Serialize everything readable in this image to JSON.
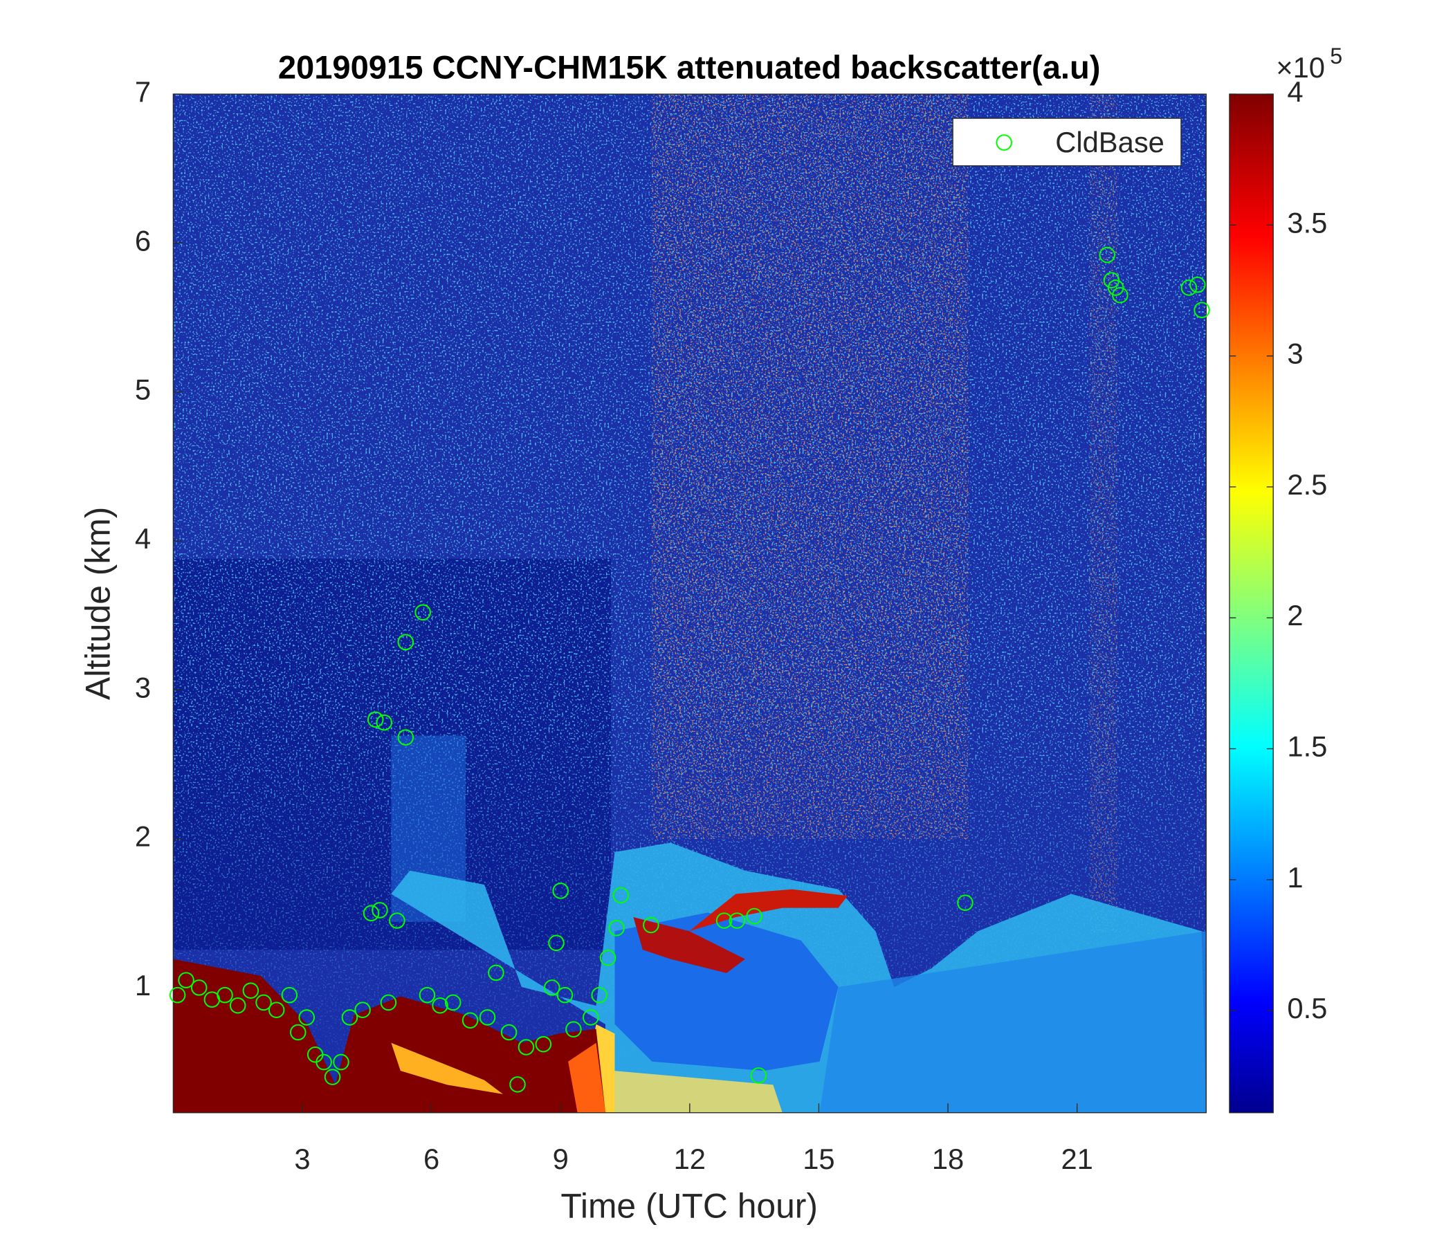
{
  "chart_data": {
    "type": "scatter",
    "title": "20190915 CCNY-CHM15K attenuated backscatter(a.u)",
    "xlabel": "Time (UTC hour)",
    "ylabel": "Altitude (km)",
    "xlim": [
      0,
      24
    ],
    "xticks": [
      3,
      6,
      9,
      12,
      15,
      18,
      21
    ],
    "ylim": [
      0.16,
      7
    ],
    "yticks": [
      1,
      2,
      3,
      4,
      5,
      6,
      7
    ],
    "legend": "upper right",
    "series": [
      {
        "name": "CldBase",
        "color": "#00ff00",
        "x": [
          0.1,
          0.3,
          0.6,
          0.9,
          1.2,
          1.5,
          1.8,
          2.1,
          2.4,
          2.7,
          2.9,
          3.1,
          3.3,
          3.5,
          3.7,
          3.9,
          4.1,
          4.4,
          4.6,
          4.7,
          4.9,
          4.8,
          5.0,
          5.2,
          5.4,
          5.4,
          5.8,
          5.9,
          6.2,
          6.5,
          6.9,
          7.3,
          7.5,
          7.8,
          8.0,
          8.2,
          8.6,
          8.8,
          8.9,
          9.0,
          9.1,
          9.3,
          9.7,
          9.9,
          10.1,
          10.3,
          10.4,
          11.1,
          12.8,
          13.1,
          13.5,
          13.6,
          18.4,
          21.7,
          21.8,
          21.9,
          22.0,
          23.6,
          23.8,
          23.9
        ],
        "values": [
          0.95,
          1.05,
          1.0,
          0.92,
          0.95,
          0.88,
          0.98,
          0.9,
          0.85,
          0.95,
          0.7,
          0.8,
          0.55,
          0.5,
          0.4,
          0.5,
          0.8,
          0.85,
          1.5,
          2.8,
          2.78,
          1.52,
          0.9,
          1.45,
          3.32,
          2.68,
          3.52,
          0.95,
          0.88,
          0.9,
          0.78,
          0.8,
          1.1,
          0.7,
          0.35,
          0.6,
          0.62,
          1.0,
          1.3,
          1.65,
          0.95,
          0.72,
          0.8,
          0.95,
          1.2,
          1.4,
          1.62,
          1.42,
          1.45,
          1.45,
          1.48,
          0.41,
          1.57,
          5.92,
          5.75,
          5.7,
          5.65,
          5.7,
          5.72,
          5.55
        ]
      }
    ],
    "colorbar": {
      "colormap": "jet",
      "clim": [
        0.11,
        4
      ],
      "ticks": [
        0.5,
        1,
        1.5,
        2,
        2.5,
        3,
        3.5,
        4
      ],
      "multiplier": "×10",
      "exponent": 5
    }
  }
}
